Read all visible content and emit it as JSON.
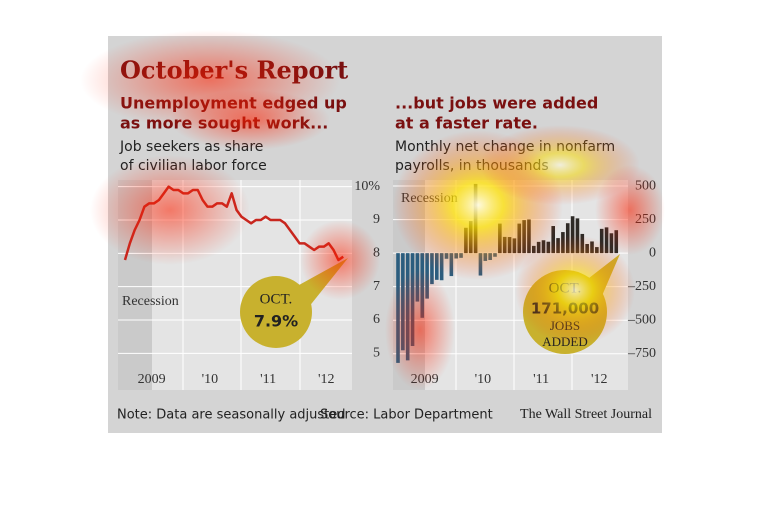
{
  "header": {
    "title": "October's Report"
  },
  "chart_data": [
    {
      "type": "line",
      "title": [
        "Unemployment edged up",
        "as more sought work..."
      ],
      "subtitle": [
        "Job seekers as share",
        "of civilian labor force"
      ],
      "categories": [
        null,
        null,
        null,
        null,
        null,
        "2009",
        null,
        null,
        null,
        null,
        null,
        null,
        null,
        null,
        null,
        null,
        null,
        "'10",
        null,
        null,
        null,
        null,
        null,
        null,
        null,
        null,
        null,
        null,
        null,
        "'11",
        null,
        null,
        null,
        null,
        null,
        null,
        null,
        null,
        null,
        null,
        null,
        "'12",
        null,
        null,
        null,
        null
      ],
      "values": [
        7.8,
        8.3,
        8.7,
        9.0,
        9.4,
        9.5,
        9.5,
        9.6,
        9.8,
        10.0,
        9.9,
        9.9,
        9.8,
        9.8,
        9.9,
        9.9,
        9.6,
        9.4,
        9.4,
        9.5,
        9.5,
        9.4,
        9.8,
        9.3,
        9.1,
        9.0,
        8.9,
        9.0,
        9.0,
        9.1,
        9.0,
        9.0,
        9.0,
        8.9,
        8.7,
        8.5,
        8.3,
        8.3,
        8.2,
        8.1,
        8.2,
        8.2,
        8.3,
        8.1,
        7.8,
        7.9
      ],
      "color": "#c8261e",
      "ylim": [
        3.9,
        10.2
      ],
      "yticks": [
        5,
        6,
        7,
        8,
        9,
        {
          "value": 10,
          "label": "10%"
        }
      ],
      "grid": true,
      "recession_label": "Recession",
      "annotation": [
        "OCT.",
        "7.9%"
      ]
    },
    {
      "type": "bar",
      "title": [
        "...but jobs were added",
        "at a faster rate."
      ],
      "subtitle": [
        "Monthly net change in nonfarm",
        "payrolls, in thousands"
      ],
      "categories": [
        null,
        null,
        null,
        null,
        null,
        "2009",
        null,
        null,
        null,
        null,
        null,
        null,
        null,
        null,
        null,
        null,
        null,
        "'10",
        null,
        null,
        null,
        null,
        null,
        null,
        null,
        null,
        null,
        null,
        null,
        "'11",
        null,
        null,
        null,
        null,
        null,
        null,
        null,
        null,
        null,
        null,
        null,
        "'12",
        null,
        null,
        null,
        null
      ],
      "values": [
        -818,
        -724,
        -799,
        -692,
        -361,
        -482,
        -339,
        -231,
        -199,
        -202,
        -42,
        -171,
        -40,
        -35,
        189,
        239,
        516,
        -167,
        -58,
        -51,
        -27,
        220,
        121,
        120,
        110,
        220,
        246,
        251,
        54,
        84,
        96,
        85,
        202,
        112,
        157,
        223,
        275,
        259,
        143,
        68,
        87,
        45,
        181,
        192,
        148,
        171
      ],
      "color": "#2e2a26",
      "negative_color": "#2b5d7e",
      "ylim": [
        -1020,
        545
      ],
      "yticks": [
        {
          "value": -750,
          "label": "–750"
        },
        {
          "value": -500,
          "label": "–500"
        },
        {
          "value": -250,
          "label": "–250"
        },
        0,
        250,
        500
      ],
      "grid": true,
      "recession_label": "Recession",
      "annotation": [
        "OCT.",
        "171,000",
        "JOBS",
        "ADDED"
      ]
    }
  ],
  "footer": {
    "note": "Note: Data are seasonally adjusted",
    "source": "Source: Labor Department",
    "credit": "The Wall Street Journal"
  }
}
